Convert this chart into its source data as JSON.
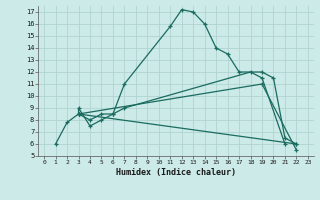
{
  "title": "",
  "xlabel": "Humidex (Indice chaleur)",
  "bg_color": "#cceae7",
  "grid_color": "#b0d4d0",
  "line_color": "#1a6b60",
  "xlim": [
    -0.5,
    23.5
  ],
  "ylim": [
    5,
    17.5
  ],
  "xticks": [
    0,
    1,
    2,
    3,
    4,
    5,
    6,
    7,
    8,
    9,
    10,
    11,
    12,
    13,
    14,
    15,
    16,
    17,
    18,
    19,
    20,
    21,
    22,
    23
  ],
  "yticks": [
    5,
    6,
    7,
    8,
    9,
    10,
    11,
    12,
    13,
    14,
    15,
    16,
    17
  ],
  "series": [
    {
      "x": [
        1,
        2,
        3,
        3,
        4,
        5,
        6,
        7,
        11,
        12,
        13,
        14,
        15,
        16,
        17,
        19,
        20,
        21,
        22
      ],
      "y": [
        6,
        7.8,
        8.5,
        9.0,
        7.5,
        8.0,
        8.5,
        11.0,
        15.8,
        17.2,
        17.0,
        16.0,
        14.0,
        13.5,
        12.0,
        12.0,
        11.5,
        6.5,
        6.0
      ]
    },
    {
      "x": [
        3,
        4,
        5,
        6,
        7,
        18,
        19,
        21
      ],
      "y": [
        8.5,
        8.0,
        8.5,
        8.5,
        9.0,
        12.0,
        11.5,
        6.0
      ]
    },
    {
      "x": [
        3,
        22
      ],
      "y": [
        8.5,
        6.0
      ]
    },
    {
      "x": [
        3,
        19,
        22
      ],
      "y": [
        8.5,
        11.0,
        5.5
      ]
    }
  ]
}
